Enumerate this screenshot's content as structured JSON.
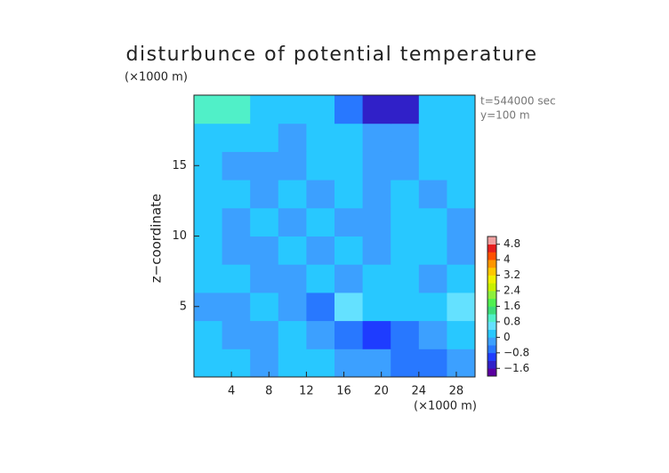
{
  "chart_data": {
    "type": "contour",
    "title": "disturbunce of potential temperature",
    "y_unit": "(×1000 m)",
    "x_unit": "(×1000 m)",
    "y_label": "z−coordinate",
    "annotations": [
      "t=544000 sec",
      "y=100 m"
    ],
    "xlim": [
      0,
      30
    ],
    "ylim": [
      0,
      20
    ],
    "xticks": [
      4,
      8,
      12,
      16,
      20,
      24,
      28
    ],
    "yticks": [
      5,
      10,
      15
    ],
    "x": [
      1.5,
      4.5,
      7.5,
      10.5,
      13.5,
      16.5,
      19.5,
      22.5,
      25.5,
      28.5
    ],
    "z": [
      1,
      3,
      5,
      7,
      9,
      11,
      13,
      15,
      17,
      19
    ],
    "values": [
      [
        0.0,
        0.1,
        -0.2,
        0.0,
        0.1,
        -0.3,
        -0.4,
        -0.5,
        -0.7,
        -0.1
      ],
      [
        0.1,
        -0.3,
        -0.1,
        0.0,
        -0.4,
        -0.6,
        -0.8,
        -0.6,
        -0.3,
        0.2
      ],
      [
        -0.4,
        -0.2,
        0.1,
        -0.3,
        -0.5,
        0.6,
        0.2,
        0.0,
        0.3,
        0.8
      ],
      [
        0.0,
        0.1,
        -0.3,
        -0.2,
        0.1,
        -0.4,
        0.0,
        0.1,
        -0.2,
        0.0
      ],
      [
        0.1,
        -0.2,
        -0.3,
        0.1,
        -0.3,
        0.0,
        -0.3,
        0.1,
        0.1,
        -0.1
      ],
      [
        0.0,
        -0.3,
        0.1,
        -0.2,
        0.1,
        -0.3,
        -0.4,
        0.1,
        0.0,
        -0.2
      ],
      [
        0.2,
        0.0,
        -0.3,
        0.1,
        -0.3,
        0.2,
        -0.4,
        0.0,
        -0.3,
        0.1
      ],
      [
        0.1,
        -0.3,
        -0.4,
        -0.2,
        0.2,
        0.1,
        -0.4,
        -0.3,
        0.1,
        0.2
      ],
      [
        0.4,
        0.3,
        0.1,
        -0.2,
        0.1,
        0.0,
        -0.2,
        -0.3,
        0.2,
        0.3
      ],
      [
        1.0,
        0.9,
        0.3,
        0.2,
        0.1,
        -0.6,
        -1.4,
        -1.5,
        0.1,
        0.2
      ]
    ],
    "colorbar": {
      "lim": [
        -2,
        5.2
      ],
      "ticks": [
        {
          "value": -1.6,
          "label": "−1.6"
        },
        {
          "value": -0.8,
          "label": "−0.8"
        },
        0,
        0.8,
        1.6,
        2.4,
        3.2,
        4,
        4.8
      ],
      "colors": [
        "#5a00a0",
        "#3020c8",
        "#1e3cff",
        "#2878ff",
        "#3ca0ff",
        "#28c8ff",
        "#64e1ff",
        "#50f0c8",
        "#3cdc78",
        "#50f050",
        "#8cf03c",
        "#c8f000",
        "#f0f000",
        "#ffc800",
        "#ff9600",
        "#ff5000",
        "#e61e1e",
        "#f0a0a0"
      ]
    }
  }
}
